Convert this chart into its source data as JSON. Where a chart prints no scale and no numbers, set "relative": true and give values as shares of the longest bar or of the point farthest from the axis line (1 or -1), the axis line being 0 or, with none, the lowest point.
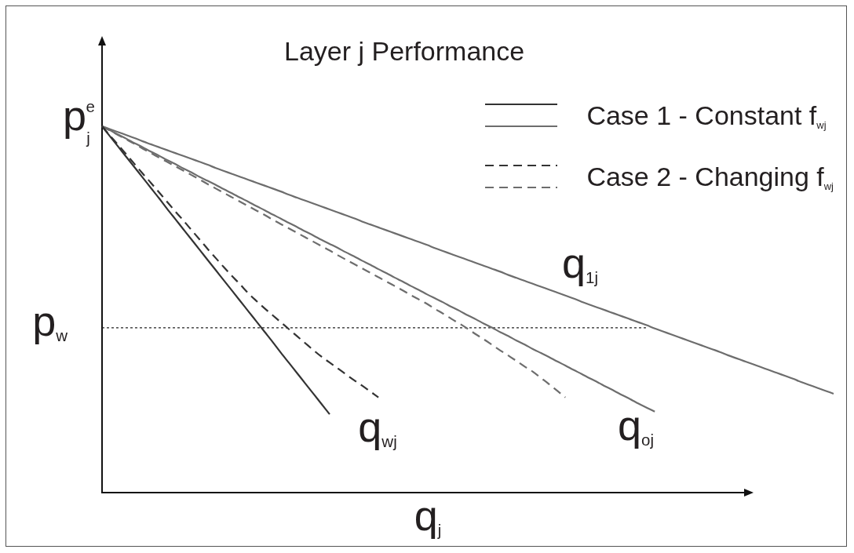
{
  "chart_data": {
    "type": "line",
    "title": "Layer j Performance",
    "xlabel": "q$_{j}$",
    "relative": true,
    "legend": "top right",
    "categories": [
      null,
      null,
      null,
      null,
      null,
      null,
      null,
      null,
      null,
      null,
      null,
      null,
      null,
      null,
      null,
      null,
      null,
      null,
      null,
      null,
      null,
      null,
      null,
      null,
      null,
      null,
      null,
      null,
      null,
      null,
      null,
      null,
      null,
      null,
      null,
      null,
      null,
      null,
      null,
      null,
      null,
      null,
      null,
      null,
      null,
      null,
      null,
      null,
      null,
      null,
      null,
      null,
      null,
      null,
      null,
      null,
      null,
      null,
      null,
      null,
      null,
      null,
      null,
      null,
      null,
      null,
      null,
      null,
      null,
      null,
      null,
      null,
      null,
      null,
      null,
      null,
      null,
      null,
      null,
      null,
      null,
      null,
      null,
      null,
      null,
      null,
      null,
      null,
      null,
      null,
      null
    ],
    "series": [
      {
        "name": "Case 1 - Constant f$_{wj}$",
        "color": "#333333",
        "line_style": "solid",
        "values": [
          1,
          0.972,
          0.944,
          0.916,
          0.888,
          0.86,
          0.832,
          0.804,
          0.775,
          0.747,
          0.719,
          0.691,
          0.663,
          0.635,
          0.607,
          0.579,
          0.551,
          0.523,
          0.495,
          0.467,
          0.439,
          0.411,
          0.382,
          0.354,
          0.326,
          0.298,
          0.27,
          0.242,
          0.214,
          null,
          null,
          null,
          null,
          null,
          null,
          null,
          null,
          null,
          null,
          null,
          null,
          null,
          null,
          null,
          null,
          null,
          null,
          null,
          null,
          null,
          null,
          null,
          null,
          null,
          null,
          null,
          null,
          null,
          null,
          null,
          null,
          null,
          null,
          null,
          null,
          null,
          null,
          null,
          null,
          null,
          null,
          null,
          null,
          null,
          null,
          null,
          null,
          null,
          null,
          null,
          null,
          null,
          null,
          null,
          null,
          null,
          null,
          null,
          null,
          null,
          null
        ]
      },
      {
        "name": "Case 2 - Changing f$_{wj}$",
        "color": "#333333",
        "line_style": "dashed",
        "values": [
          1,
          0.974,
          0.949,
          0.923,
          0.897,
          0.871,
          0.846,
          0.82,
          0.794,
          0.768,
          0.743,
          0.717,
          0.691,
          0.665,
          0.64,
          0.615,
          0.591,
          0.568,
          0.544,
          0.523,
          0.503,
          0.484,
          0.465,
          0.446,
          0.427,
          0.408,
          0.389,
          0.371,
          0.355,
          0.339,
          0.323,
          0.307,
          0.292,
          0.276,
          0.26,
          null,
          null,
          null,
          null,
          null,
          null,
          null,
          null,
          null,
          null,
          null,
          null,
          null,
          null,
          null,
          null,
          null,
          null,
          null,
          null,
          null,
          null,
          null,
          null,
          null,
          null,
          null,
          null,
          null,
          null,
          null,
          null,
          null,
          null,
          null,
          null,
          null,
          null,
          null,
          null,
          null,
          null,
          null,
          null,
          null,
          null,
          null,
          null,
          null,
          null,
          null,
          null,
          null,
          null,
          null,
          null
        ]
      },
      {
        "color": "#6d6d6d",
        "line_style": "solid",
        "values": [
          1,
          0.989,
          0.977,
          0.966,
          0.954,
          0.943,
          0.931,
          0.92,
          0.908,
          0.897,
          0.885,
          0.874,
          0.862,
          0.851,
          0.84,
          0.828,
          0.817,
          0.805,
          0.794,
          0.782,
          0.771,
          0.759,
          0.748,
          0.736,
          0.725,
          0.713,
          0.702,
          0.69,
          0.679,
          0.668,
          0.656,
          0.645,
          0.633,
          0.622,
          0.61,
          0.599,
          0.587,
          0.576,
          0.564,
          0.553,
          0.541,
          0.53,
          0.519,
          0.507,
          0.496,
          0.484,
          0.473,
          0.461,
          0.45,
          0.438,
          0.427,
          0.415,
          0.404,
          0.392,
          0.381,
          0.37,
          0.358,
          0.347,
          0.335,
          0.324,
          0.312,
          0.301,
          0.289,
          0.278,
          0.266,
          0.255,
          0.243,
          0.232,
          0.221,
          null,
          null,
          null,
          null,
          null,
          null,
          null,
          null,
          null,
          null,
          null,
          null,
          null,
          null,
          null,
          null,
          null,
          null,
          null,
          null,
          null,
          null
        ]
      },
      {
        "color": "#6d6d6d",
        "line_style": "dashed",
        "values": [
          1,
          0.988,
          0.976,
          0.964,
          0.952,
          0.939,
          0.927,
          0.915,
          0.903,
          0.891,
          0.879,
          0.867,
          0.855,
          0.842,
          0.83,
          0.818,
          0.806,
          0.794,
          0.782,
          0.77,
          0.758,
          0.745,
          0.733,
          0.721,
          0.709,
          0.697,
          0.685,
          0.673,
          0.661,
          0.648,
          0.636,
          0.624,
          0.612,
          0.6,
          0.588,
          0.576,
          0.564,
          0.552,
          0.539,
          0.527,
          0.515,
          0.501,
          0.488,
          0.474,
          0.461,
          0.447,
          0.432,
          0.418,
          0.403,
          0.388,
          0.374,
          0.359,
          0.344,
          0.33,
          0.313,
          0.296,
          0.278,
          0.26,
          null,
          null,
          null,
          null,
          null,
          null,
          null,
          null,
          null,
          null,
          null,
          null,
          null,
          null,
          null,
          null,
          null,
          null,
          null,
          null,
          null,
          null,
          null,
          null,
          null,
          null,
          null,
          null,
          null,
          null,
          null,
          null,
          null
        ]
      },
      {
        "color": "#6d6d6d",
        "line_style": "solid",
        "values": [
          1,
          0.992,
          0.984,
          0.976,
          0.968,
          0.959,
          0.951,
          0.943,
          0.935,
          0.927,
          0.919,
          0.911,
          0.903,
          0.895,
          0.886,
          0.878,
          0.87,
          0.862,
          0.854,
          0.846,
          0.838,
          0.83,
          0.822,
          0.813,
          0.805,
          0.797,
          0.789,
          0.781,
          0.773,
          0.765,
          0.757,
          0.749,
          0.74,
          0.732,
          0.724,
          0.716,
          0.708,
          0.7,
          0.692,
          0.684,
          0.676,
          0.667,
          0.659,
          0.651,
          0.643,
          0.635,
          0.627,
          0.619,
          0.611,
          0.603,
          0.594,
          0.586,
          0.578,
          0.57,
          0.562,
          0.554,
          0.546,
          0.538,
          0.53,
          0.521,
          0.513,
          0.505,
          0.497,
          0.489,
          0.481,
          0.473,
          0.465,
          0.457,
          0.448,
          0.44,
          0.432,
          0.424,
          0.416,
          0.408,
          0.4,
          0.392,
          0.384,
          0.375,
          0.367,
          0.359,
          0.351,
          0.343,
          0.335,
          0.327,
          0.319,
          0.311,
          0.302,
          0.294,
          0.286,
          0.278,
          0.27
        ]
      },
      {
        "color": "#222222",
        "line_style": "dotted",
        "values": [
          0.45,
          0.45,
          0.45,
          0.45,
          0.45,
          0.45,
          0.45,
          0.45,
          0.45,
          0.45,
          0.45,
          0.45,
          0.45,
          0.45,
          0.45,
          0.45,
          0.45,
          0.45,
          0.45,
          0.45,
          0.45,
          0.45,
          0.45,
          0.45,
          0.45,
          0.45,
          0.45,
          0.45,
          0.45,
          0.45,
          0.45,
          0.45,
          0.45,
          0.45,
          0.45,
          0.45,
          0.45,
          0.45,
          0.45,
          0.45,
          0.45,
          0.45,
          0.45,
          0.45,
          0.45,
          0.45,
          0.45,
          0.45,
          0.45,
          0.45,
          0.45,
          0.45,
          0.45,
          0.45,
          0.45,
          0.45,
          0.45,
          0.45,
          0.45,
          0.45,
          0.45,
          0.45,
          0.45,
          0.45,
          0.45,
          0.45,
          0.45,
          0.45,
          null,
          null,
          null,
          null,
          null,
          null,
          null,
          null,
          null,
          null,
          null,
          null,
          null,
          null,
          null,
          null,
          null,
          null,
          null,
          null,
          null,
          null,
          null
        ]
      }
    ],
    "annotations": [
      "p$_{j}$$^{e}$",
      "q$_{wj}$",
      "q$_{oj}$",
      "q$_{1j}$",
      "p$_{w}$"
    ]
  }
}
